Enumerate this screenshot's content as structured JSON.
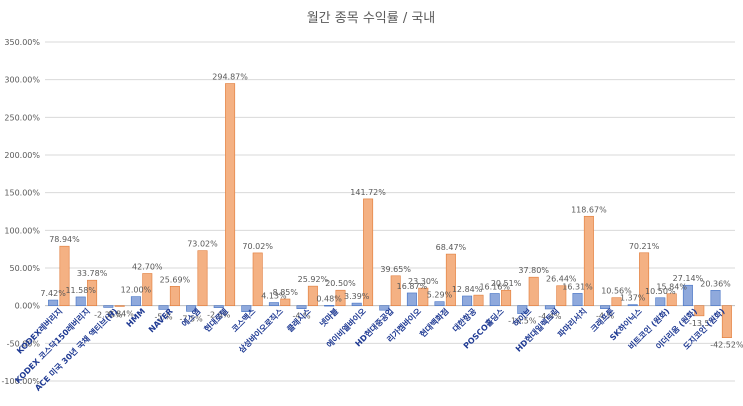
{
  "chart_data": {
    "type": "bar",
    "title": "월간 종목 수익률 / 국내",
    "xlabel": "",
    "ylabel": "",
    "ylim": [
      -100,
      350
    ],
    "ytick_step": 50,
    "grid": true,
    "legend": "none",
    "colors": {
      "series1": "#8fa9dc",
      "series1_stroke": "#4472c4",
      "series2": "#f4b183",
      "series2_stroke": "#e07b39"
    },
    "categories": [
      "KODEX레버리지",
      "KODEX 코스닥150레버리지",
      "ACE 미국 30년 국채 액티브(H)",
      "HMM",
      "NAVER",
      "에스엠",
      "현대로템",
      "코스맥스",
      "삼성바이오로직스",
      "클래시스",
      "넷마블",
      "에이비엘바이오",
      "HD현대중공업",
      "리가켐바이오",
      "현대백화점",
      "대한항공",
      "POSCO홀딩스",
      "하이브",
      "HD현대일렉트릭",
      "파마리서치",
      "크래프톤",
      "SK하이닉스",
      "비트코인 (원화)",
      "이더리움 (원화)",
      "도지코인 (원화)"
    ],
    "series": [
      {
        "values": [
          7.42,
          11.58,
          -2.35,
          12.0,
          -5.0,
          -7.5,
          -2.6,
          -8.0,
          4.13,
          -4.0,
          0.48,
          3.39,
          -6.0,
          16.87,
          5.29,
          12.84,
          16.16,
          -10.5,
          -4.4,
          16.31,
          -4.0,
          1.37,
          10.5,
          27.14,
          20.36
        ],
        "labels": [
          "7.42%",
          "11.58%",
          "-2.35%",
          "12.00%",
          "-5.%",
          "-7.5%",
          "-2.6%",
          "",
          "4.13%",
          "-4.%",
          "0.48%",
          "3.39%",
          "",
          "16.87%",
          "5.29%",
          "12.84%",
          "16.16%",
          "-10.5%",
          "-4.4%",
          "16.31%",
          "-4.%",
          "1.37%",
          "10.50%",
          "27.14%",
          "20.36%"
        ]
      },
      {
        "values": [
          78.94,
          33.78,
          -0.84,
          42.7,
          25.69,
          73.02,
          294.87,
          70.02,
          8.85,
          25.92,
          20.5,
          141.72,
          39.65,
          23.3,
          68.47,
          14.0,
          20.51,
          37.8,
          26.44,
          118.67,
          10.56,
          70.21,
          15.84,
          -13.5,
          -42.52
        ],
        "labels": [
          "78.94%",
          "33.78%",
          "-0.84%",
          "42.70%",
          "25.69%",
          "73.02%",
          "294.87%",
          "70.02%",
          "8.85%",
          "25.92%",
          "20.50%",
          "141.72%",
          "39.65%",
          "23.30%",
          "68.47%",
          "",
          "20.51%",
          "37.80%",
          "26.44%",
          "118.67%",
          "10.56%",
          "70.21%",
          "15.84%",
          "-13.5",
          "-42.52%"
        ]
      }
    ]
  }
}
